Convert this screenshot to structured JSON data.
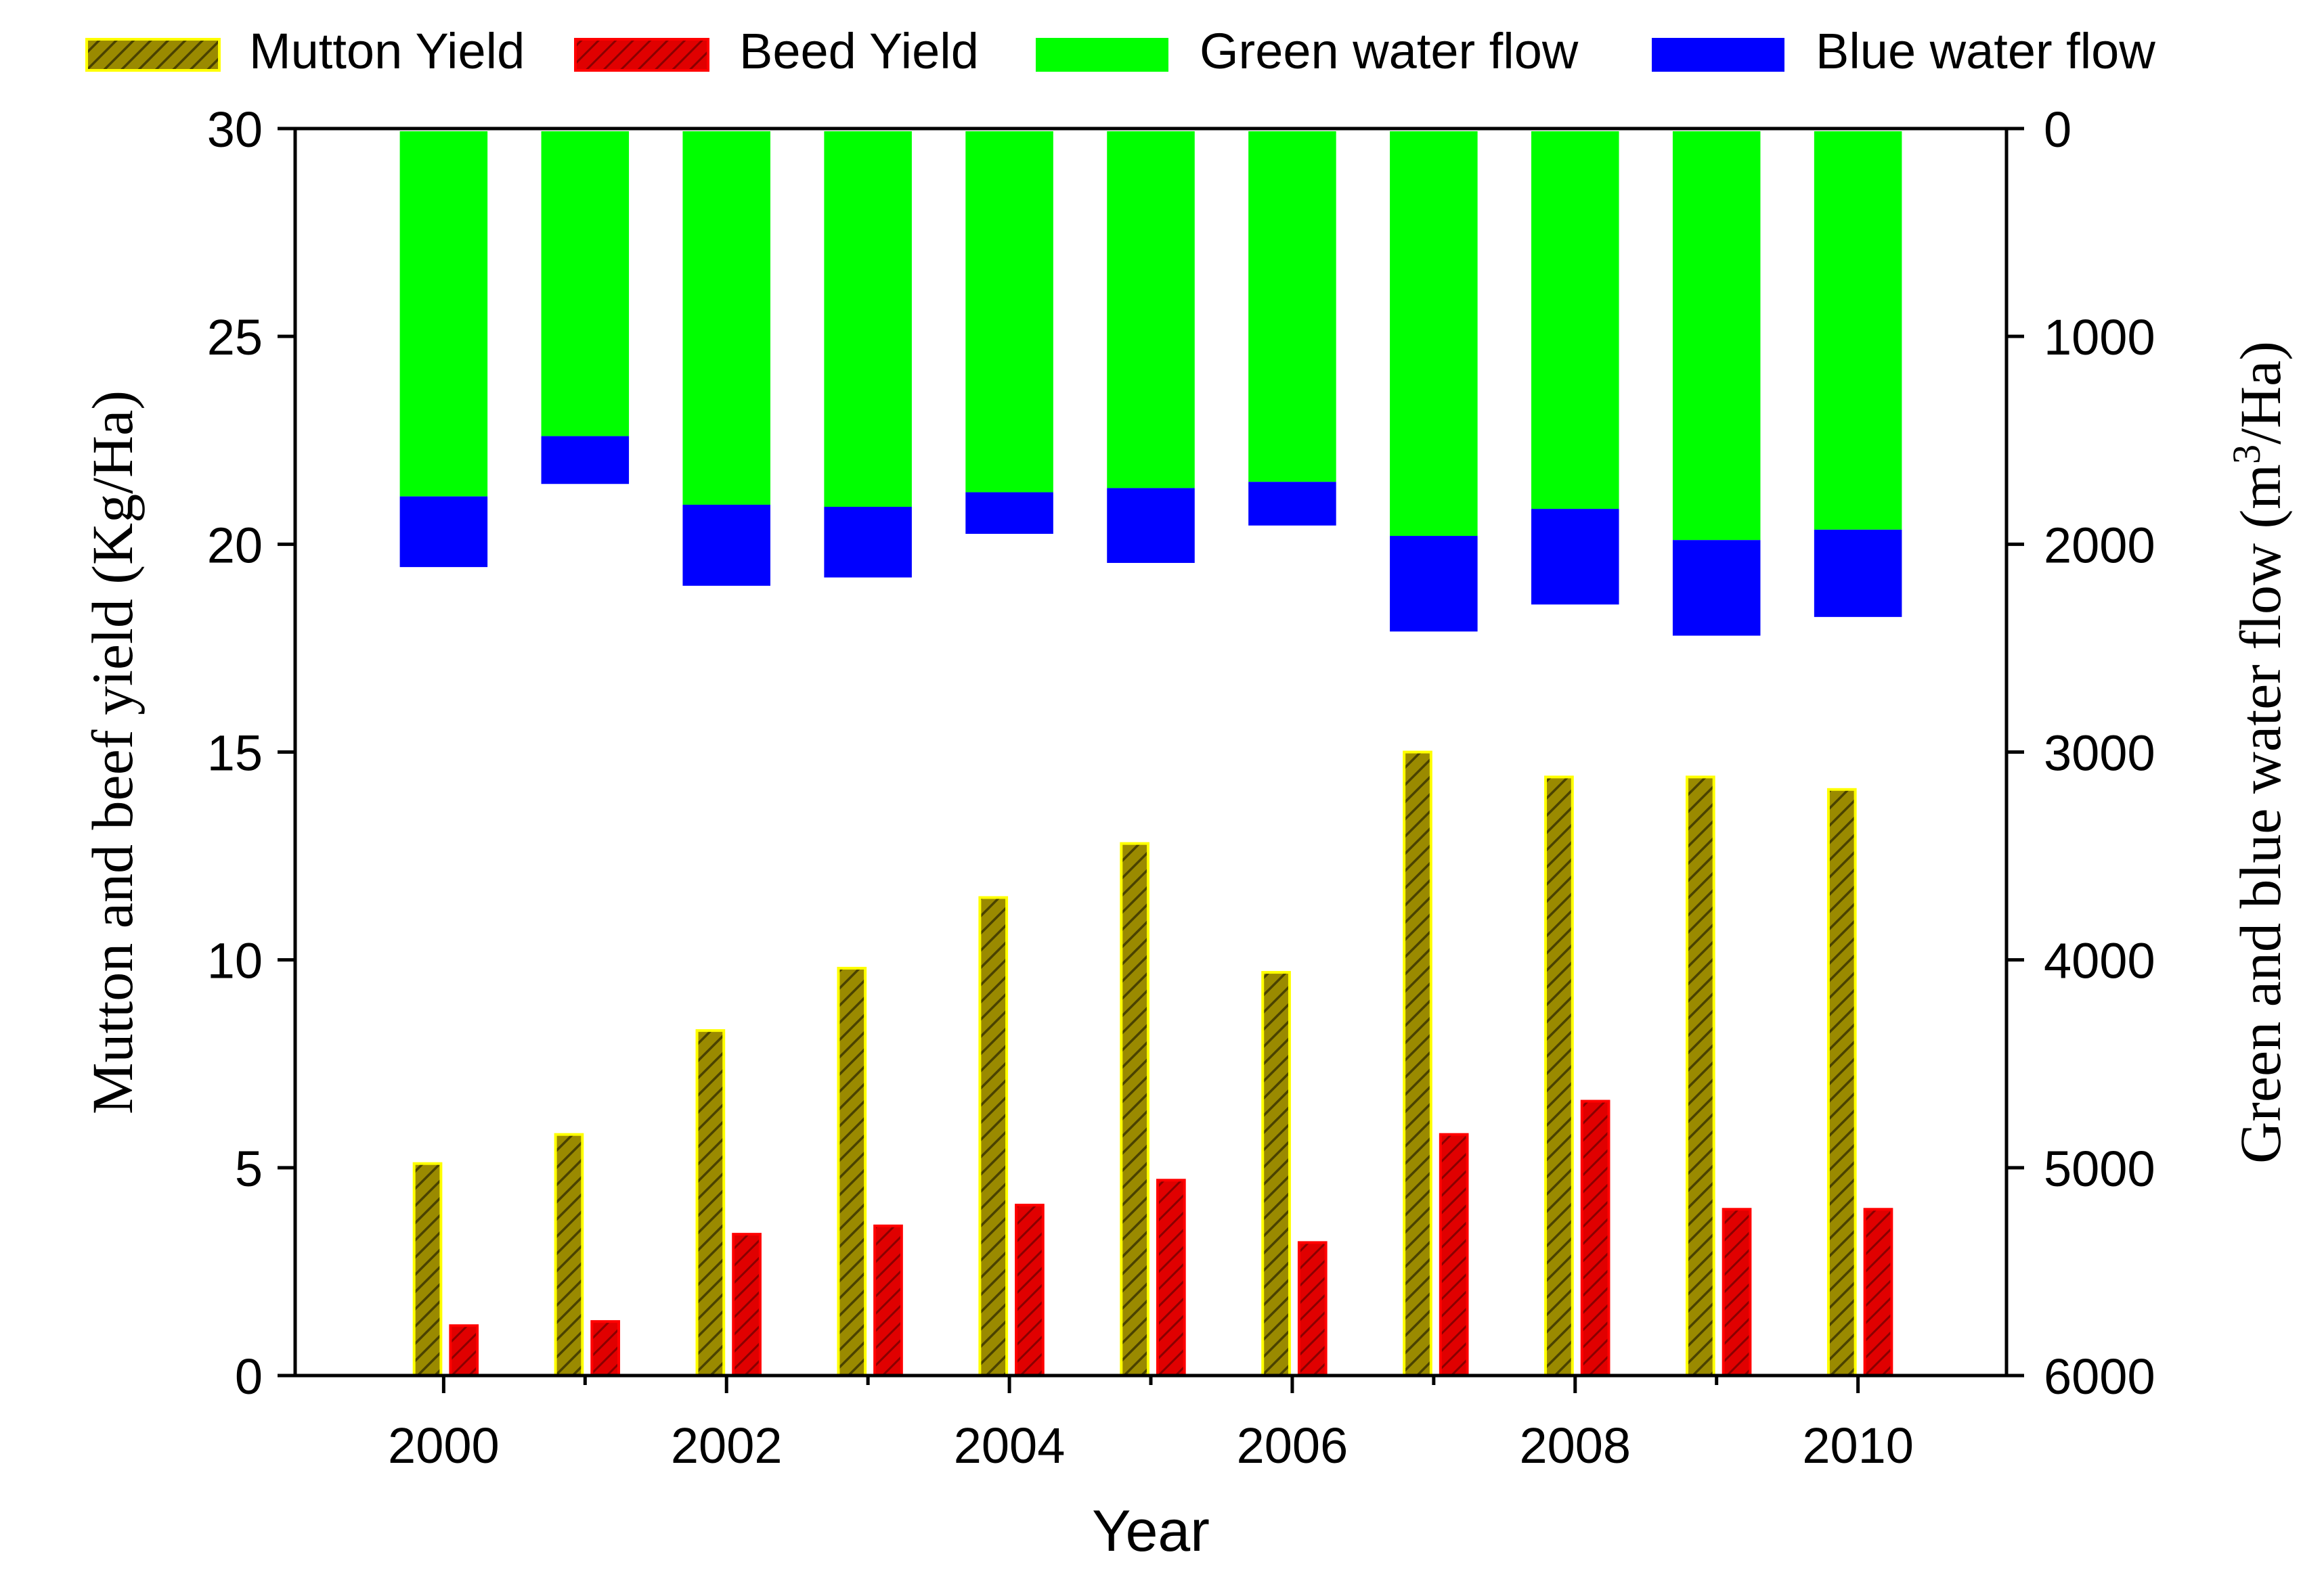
{
  "chart_data": {
    "type": "bar",
    "x": [
      2000,
      2001,
      2002,
      2003,
      2004,
      2005,
      2006,
      2007,
      2008,
      2009,
      2010
    ],
    "x_tick_labels": [
      "2000",
      "2002",
      "2004",
      "2006",
      "2008",
      "2010"
    ],
    "xlim": [
      1998.95,
      2011.05
    ],
    "xlabel": "Year",
    "ylabel_left": "Mutton and beef yield (Kg/Ha)",
    "ylabel_right_parts": [
      "Green and blue water flow (m",
      "3",
      "/Ha)"
    ],
    "ylim_left": [
      0,
      30
    ],
    "ylim_right_inverted": [
      0,
      6000
    ],
    "yticks_left": [
      "0",
      "5",
      "10",
      "15",
      "20",
      "25",
      "30"
    ],
    "yticks_right": [
      "0",
      "1000",
      "2000",
      "3000",
      "4000",
      "5000",
      "6000"
    ],
    "grid": false,
    "legend_position": "top",
    "series": [
      {
        "name": "Mutton Yield",
        "axis": "left",
        "color": "#9a8a00",
        "edge_color": "#ffff00",
        "pattern": "hatch",
        "values": [
          5.1,
          5.8,
          8.3,
          9.8,
          11.5,
          12.8,
          9.7,
          15.0,
          14.4,
          14.4,
          14.1
        ]
      },
      {
        "name": "Beed Yield",
        "axis": "left",
        "color": "#cc0000",
        "edge_color": "#ff0000",
        "pattern": "hatch",
        "values": [
          1.2,
          1.3,
          3.4,
          3.6,
          4.1,
          4.7,
          3.2,
          5.8,
          6.6,
          4.0,
          4.0
        ]
      },
      {
        "name": "Green water flow",
        "axis": "right",
        "color": "#00ff00",
        "stack": "water",
        "values": [
          1770,
          1480,
          1810,
          1820,
          1750,
          1730,
          1700,
          1960,
          1830,
          1980,
          1930
        ]
      },
      {
        "name": "Blue water flow",
        "axis": "right",
        "color": "#0000ff",
        "stack": "water",
        "values": [
          340,
          230,
          390,
          340,
          200,
          360,
          210,
          460,
          460,
          460,
          420
        ]
      }
    ]
  }
}
